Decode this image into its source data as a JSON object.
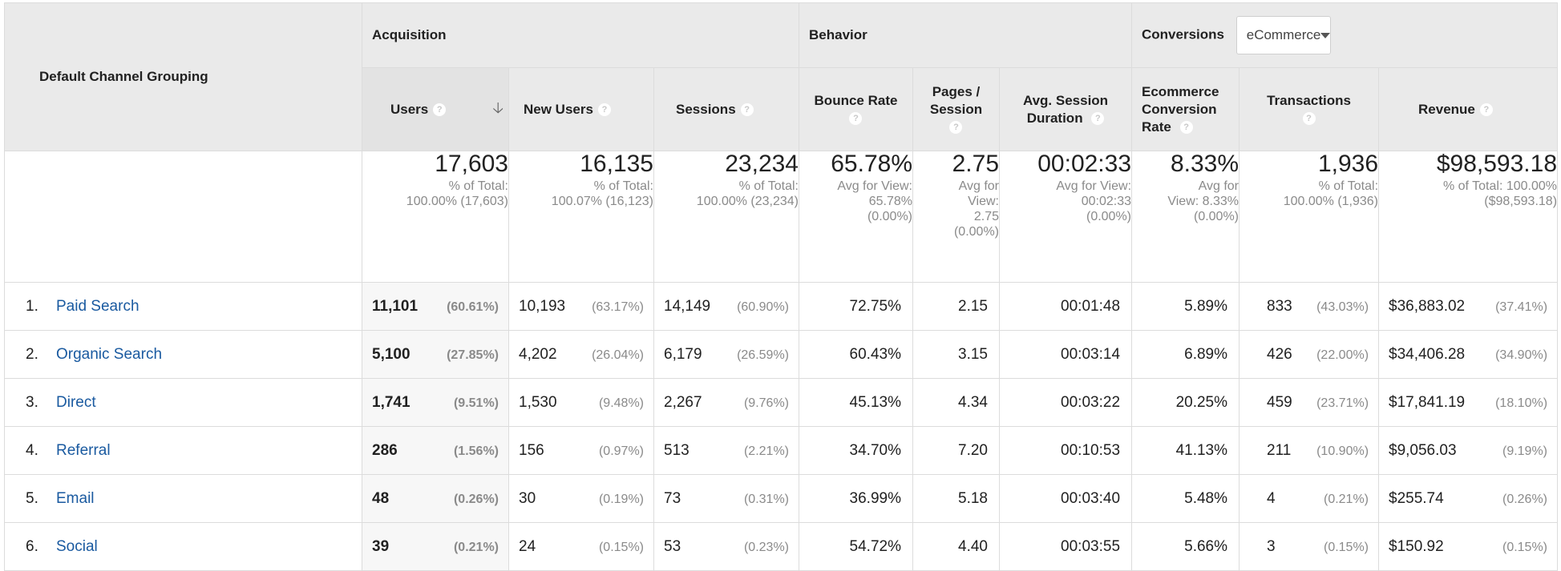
{
  "header": {
    "dimension": "Default Channel Grouping",
    "groups": {
      "acquisition": "Acquisition",
      "behavior": "Behavior",
      "conversions": "Conversions",
      "conversions_select": "eCommerce"
    },
    "columns": {
      "users": "Users",
      "new_users": "New Users",
      "sessions": "Sessions",
      "bounce_rate": "Bounce Rate",
      "pages_session_1": "Pages /",
      "pages_session_2": "Session",
      "avg_duration_1": "Avg. Session",
      "avg_duration_2": "Duration",
      "ecr_1": "Ecommerce",
      "ecr_2": "Conversion",
      "ecr_3": "Rate",
      "transactions": "Transactions",
      "revenue": "Revenue"
    },
    "help_glyph": "?",
    "sort_glyph": "🡣",
    "icons": {
      "help": "question-circle-icon",
      "sort": "arrow-down-icon",
      "dropdown": "caret-down-icon"
    }
  },
  "totals": {
    "users": {
      "value": "17,603",
      "l1": "% of Total:",
      "l2": "100.00% (17,603)"
    },
    "new_users": {
      "value": "16,135",
      "l1": "% of Total:",
      "l2": "100.07% (16,123)"
    },
    "sessions": {
      "value": "23,234",
      "l1": "% of Total:",
      "l2": "100.00% (23,234)"
    },
    "bounce_rate": {
      "value": "65.78%",
      "l1": "Avg for View:",
      "l2": "65.78%",
      "l3": "(0.00%)"
    },
    "pages_session": {
      "value": "2.75",
      "l1": "Avg for",
      "l2": "View:",
      "l3": "2.75",
      "l4": "(0.00%)"
    },
    "avg_duration": {
      "value": "00:02:33",
      "l1": "Avg for View:",
      "l2": "00:02:33",
      "l3": "(0.00%)"
    },
    "ecr": {
      "value": "8.33%",
      "l1": "Avg for",
      "l2": "View: 8.33%",
      "l3": "(0.00%)"
    },
    "transactions": {
      "value": "1,936",
      "l1": "% of Total:",
      "l2": "100.00% (1,936)"
    },
    "revenue": {
      "value": "$98,593.18",
      "l1": "% of Total: 100.00%",
      "l2": "($98,593.18)"
    }
  },
  "rows": [
    {
      "idx": "1.",
      "channel": "Paid Search",
      "users": "11,101",
      "users_pct": "(60.61%)",
      "new_users": "10,193",
      "new_users_pct": "(63.17%)",
      "sessions": "14,149",
      "sessions_pct": "(60.90%)",
      "bounce_rate": "72.75%",
      "pages_session": "2.15",
      "avg_duration": "00:01:48",
      "ecr": "5.89%",
      "transactions": "833",
      "transactions_pct": "(43.03%)",
      "revenue": "$36,883.02",
      "revenue_pct": "(37.41%)"
    },
    {
      "idx": "2.",
      "channel": "Organic Search",
      "users": "5,100",
      "users_pct": "(27.85%)",
      "new_users": "4,202",
      "new_users_pct": "(26.04%)",
      "sessions": "6,179",
      "sessions_pct": "(26.59%)",
      "bounce_rate": "60.43%",
      "pages_session": "3.15",
      "avg_duration": "00:03:14",
      "ecr": "6.89%",
      "transactions": "426",
      "transactions_pct": "(22.00%)",
      "revenue": "$34,406.28",
      "revenue_pct": "(34.90%)"
    },
    {
      "idx": "3.",
      "channel": "Direct",
      "users": "1,741",
      "users_pct": "(9.51%)",
      "new_users": "1,530",
      "new_users_pct": "(9.48%)",
      "sessions": "2,267",
      "sessions_pct": "(9.76%)",
      "bounce_rate": "45.13%",
      "pages_session": "4.34",
      "avg_duration": "00:03:22",
      "ecr": "20.25%",
      "transactions": "459",
      "transactions_pct": "(23.71%)",
      "revenue": "$17,841.19",
      "revenue_pct": "(18.10%)"
    },
    {
      "idx": "4.",
      "channel": "Referral",
      "users": "286",
      "users_pct": "(1.56%)",
      "new_users": "156",
      "new_users_pct": "(0.97%)",
      "sessions": "513",
      "sessions_pct": "(2.21%)",
      "bounce_rate": "34.70%",
      "pages_session": "7.20",
      "avg_duration": "00:10:53",
      "ecr": "41.13%",
      "transactions": "211",
      "transactions_pct": "(10.90%)",
      "revenue": "$9,056.03",
      "revenue_pct": "(9.19%)"
    },
    {
      "idx": "5.",
      "channel": "Email",
      "users": "48",
      "users_pct": "(0.26%)",
      "new_users": "30",
      "new_users_pct": "(0.19%)",
      "sessions": "73",
      "sessions_pct": "(0.31%)",
      "bounce_rate": "36.99%",
      "pages_session": "5.18",
      "avg_duration": "00:03:40",
      "ecr": "5.48%",
      "transactions": "4",
      "transactions_pct": "(0.21%)",
      "revenue": "$255.74",
      "revenue_pct": "(0.26%)"
    },
    {
      "idx": "6.",
      "channel": "Social",
      "users": "39",
      "users_pct": "(0.21%)",
      "new_users": "24",
      "new_users_pct": "(0.15%)",
      "sessions": "53",
      "sessions_pct": "(0.23%)",
      "bounce_rate": "54.72%",
      "pages_session": "4.40",
      "avg_duration": "00:03:55",
      "ecr": "5.66%",
      "transactions": "3",
      "transactions_pct": "(0.15%)",
      "revenue": "$150.92",
      "revenue_pct": "(0.15%)"
    }
  ]
}
